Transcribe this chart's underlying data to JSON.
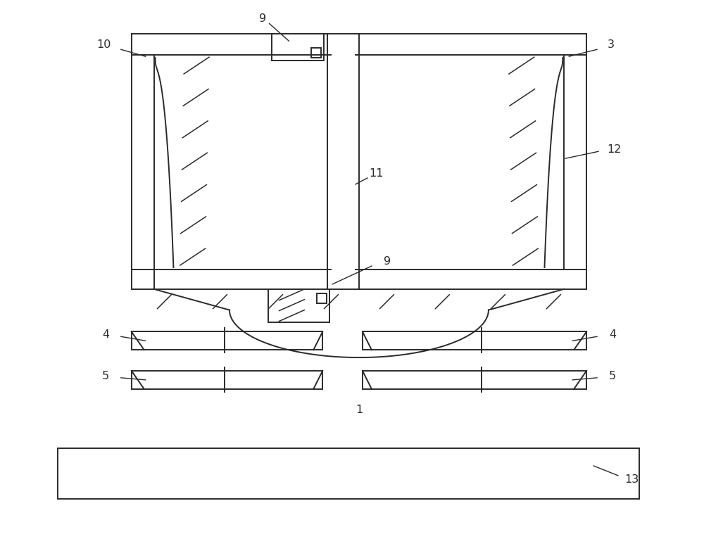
{
  "bg_color": "#ffffff",
  "line_color": "#2a2a2a",
  "lw": 1.4,
  "fig_width": 10.0,
  "fig_height": 7.66,
  "dpi": 100
}
